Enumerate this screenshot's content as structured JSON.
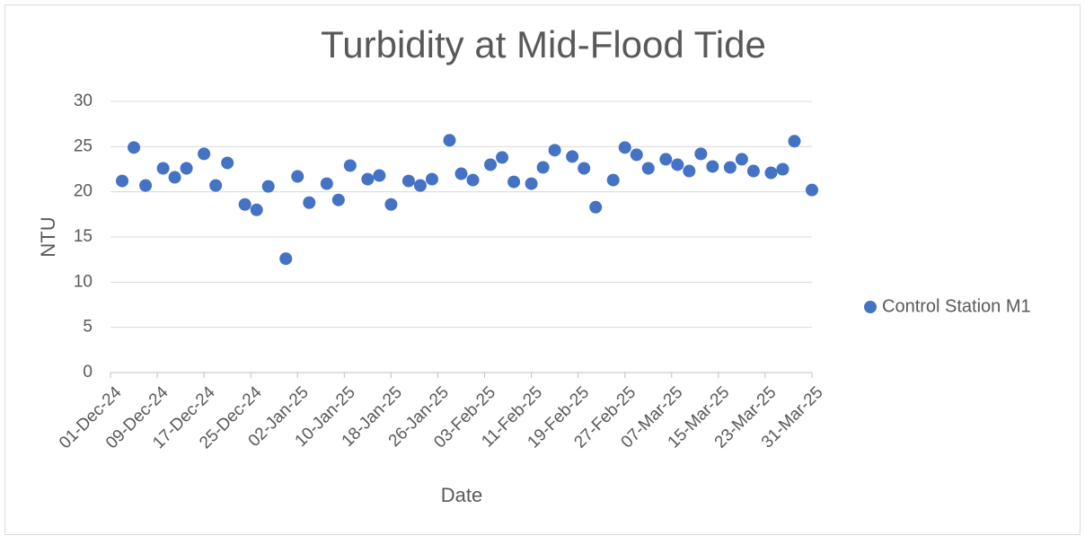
{
  "chart_data": {
    "type": "scatter",
    "title": "Turbidity at Mid-Flood Tide",
    "x_label": "Date",
    "y_label": "NTU",
    "series": [
      {
        "name": "Control Station M1",
        "color": "#4472c4",
        "x": [
          "2024-12-03",
          "2024-12-05",
          "2024-12-07",
          "2024-12-10",
          "2024-12-12",
          "2024-12-14",
          "2024-12-17",
          "2024-12-19",
          "2024-12-21",
          "2024-12-24",
          "2024-12-26",
          "2024-12-28",
          "2024-12-31",
          "2025-01-02",
          "2025-01-04",
          "2025-01-07",
          "2025-01-09",
          "2025-01-11",
          "2025-01-14",
          "2025-01-16",
          "2025-01-18",
          "2025-01-21",
          "2025-01-23",
          "2025-01-25",
          "2025-01-28",
          "2025-01-30",
          "2025-02-01",
          "2025-02-04",
          "2025-02-06",
          "2025-02-08",
          "2025-02-11",
          "2025-02-13",
          "2025-02-15",
          "2025-02-18",
          "2025-02-20",
          "2025-02-22",
          "2025-02-25",
          "2025-02-27",
          "2025-03-01",
          "2025-03-03",
          "2025-03-06",
          "2025-03-08",
          "2025-03-10",
          "2025-03-12",
          "2025-03-14",
          "2025-03-17",
          "2025-03-19",
          "2025-03-21",
          "2025-03-24",
          "2025-03-26",
          "2025-03-28",
          "2025-03-31"
        ],
        "values": [
          21.2,
          24.9,
          20.7,
          22.6,
          21.6,
          22.6,
          24.2,
          20.7,
          23.2,
          18.6,
          18.0,
          20.6,
          12.6,
          21.7,
          18.8,
          20.9,
          19.1,
          22.9,
          21.4,
          21.8,
          18.6,
          21.2,
          20.7,
          21.4,
          25.7,
          22.0,
          21.3,
          23.0,
          23.8,
          21.1,
          20.9,
          22.7,
          24.6,
          23.9,
          22.6,
          18.3,
          21.3,
          24.9,
          24.1,
          22.6,
          23.6,
          23.0,
          22.3,
          24.2,
          22.8,
          22.7,
          23.6,
          22.3,
          22.1,
          22.5,
          25.6,
          20.2
        ]
      }
    ],
    "xlim": [
      "2024-12-01",
      "2025-03-31"
    ],
    "xticks": [
      {
        "value": "2024-12-01",
        "label": "01-Dec-24"
      },
      {
        "value": "2024-12-09",
        "label": "09-Dec-24"
      },
      {
        "value": "2024-12-17",
        "label": "17-Dec-24"
      },
      {
        "value": "2024-12-25",
        "label": "25-Dec-24"
      },
      {
        "value": "2025-01-02",
        "label": "02-Jan-25"
      },
      {
        "value": "2025-01-10",
        "label": "10-Jan-25"
      },
      {
        "value": "2025-01-18",
        "label": "18-Jan-25"
      },
      {
        "value": "2025-01-26",
        "label": "26-Jan-25"
      },
      {
        "value": "2025-02-03",
        "label": "03-Feb-25"
      },
      {
        "value": "2025-02-11",
        "label": "11-Feb-25"
      },
      {
        "value": "2025-02-19",
        "label": "19-Feb-25"
      },
      {
        "value": "2025-02-27",
        "label": "27-Feb-25"
      },
      {
        "value": "2025-03-07",
        "label": "07-Mar-25"
      },
      {
        "value": "2025-03-15",
        "label": "15-Mar-25"
      },
      {
        "value": "2025-03-23",
        "label": "23-Mar-25"
      },
      {
        "value": "2025-03-31",
        "label": "31-Mar-25"
      }
    ],
    "ylim": [
      0,
      30
    ],
    "yticks": [
      0,
      5,
      10,
      15,
      20,
      25,
      30
    ],
    "grid": true,
    "legend": "right"
  }
}
